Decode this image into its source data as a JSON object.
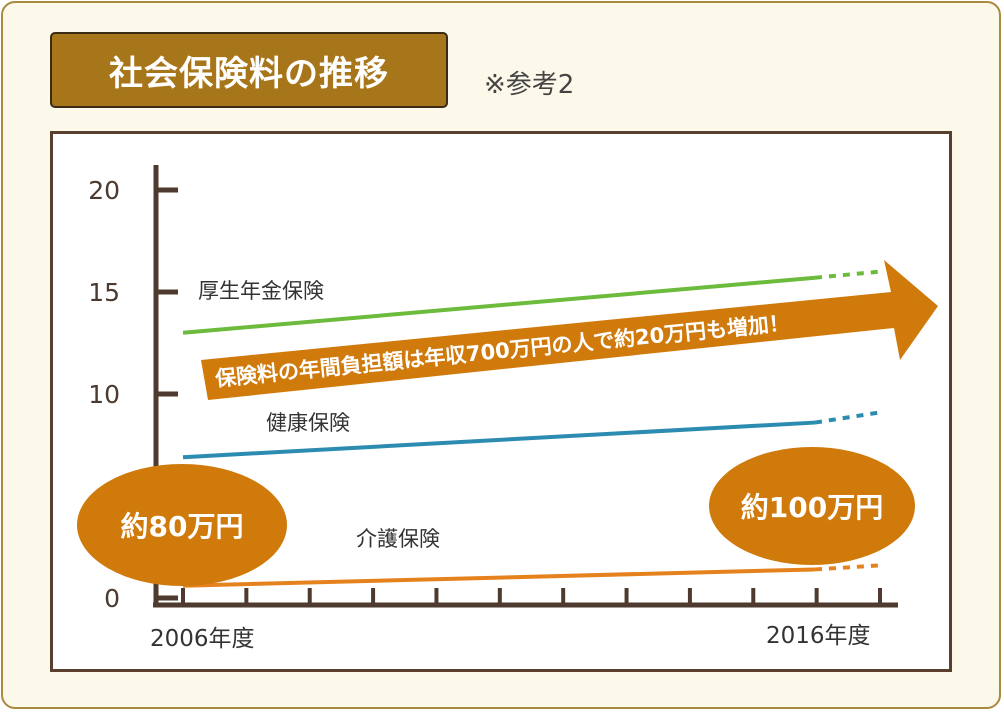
{
  "header": {
    "title": "社会保険料の推移",
    "note": "※参考2"
  },
  "chart_data": {
    "type": "line",
    "title": "社会保険料の推移",
    "x": [
      "2006年度",
      "2016年度"
    ],
    "xtick_count": 12,
    "y_ticks": [
      "0",
      "5",
      "10",
      "15",
      "20"
    ],
    "ylim": [
      0,
      20
    ],
    "grid": false,
    "series": [
      {
        "name": "厚生年金保険",
        "color": "#6cbb3c",
        "values": [
          13.0,
          15.7
        ],
        "projected_end": 16.0
      },
      {
        "name": "健康保険",
        "color": "#2b8bb0",
        "values": [
          6.9,
          8.6
        ],
        "projected_end": 9.1
      },
      {
        "name": "介護保険",
        "color": "#e6821e",
        "values": [
          0.6,
          1.4
        ],
        "projected_end": 1.6
      }
    ],
    "annotations": {
      "start_total": "約80万円",
      "end_total": "約100万円",
      "banner": "保険料の年間負担額は年収700万円の人で約20万円も増加！"
    },
    "colors": {
      "axis": "#4e3a2e",
      "ellipse": "#d07a0c",
      "banner": "#d07a0c"
    }
  }
}
